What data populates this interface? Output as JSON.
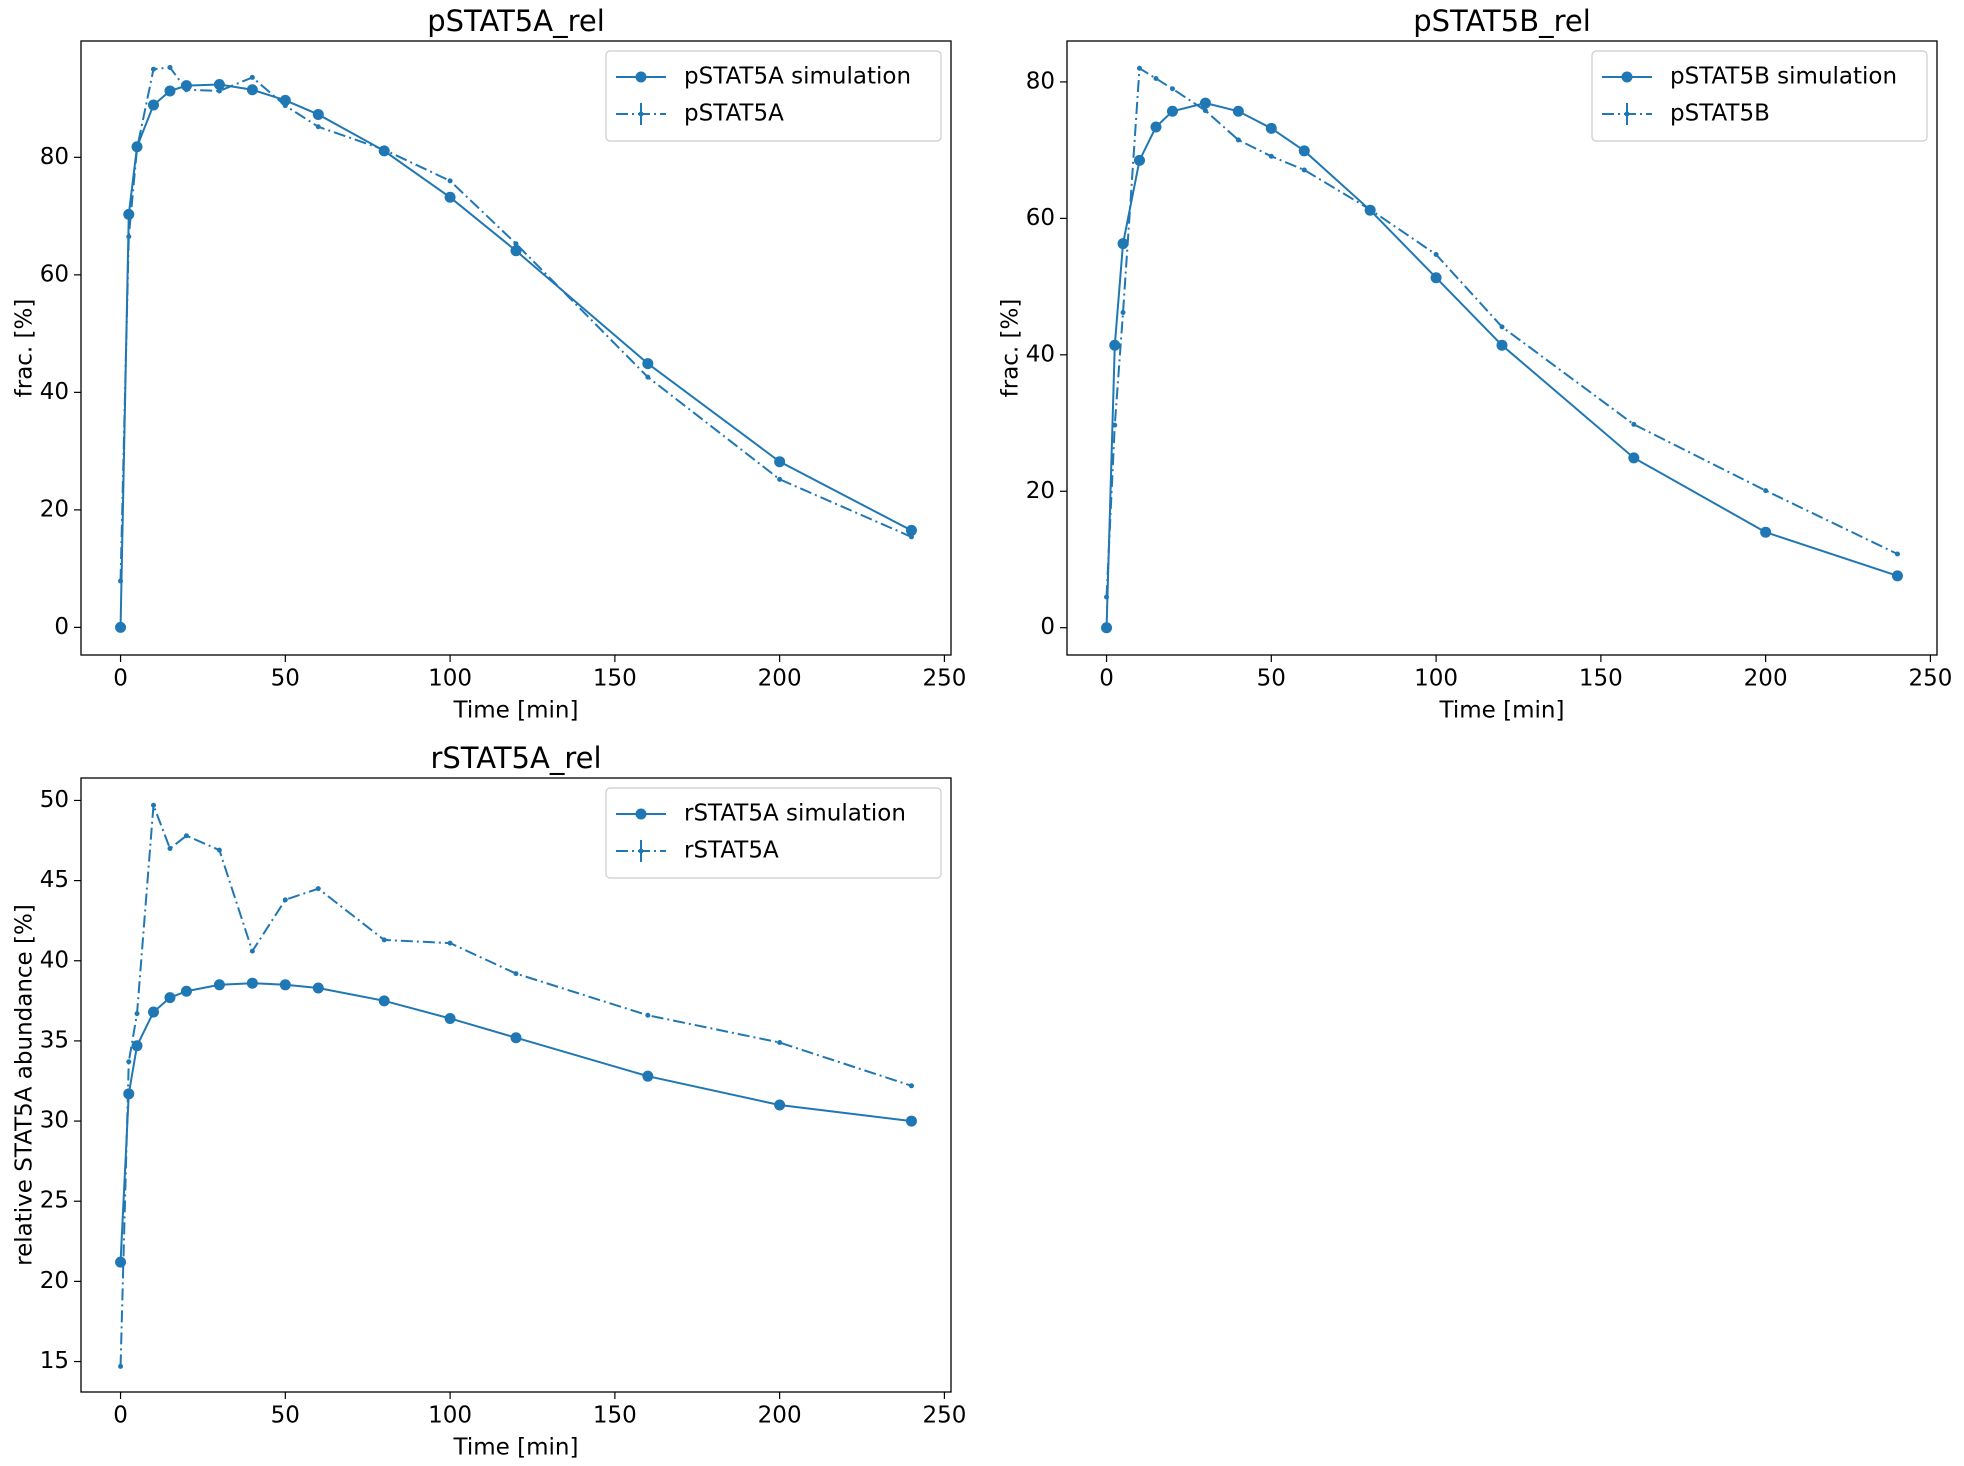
{
  "chart_data": [
    {
      "type": "line",
      "title": "pSTAT5A_rel",
      "xlabel": "Time [min]",
      "ylabel": "frac. [%]",
      "x": [
        0,
        2.5,
        5,
        10,
        15,
        20,
        30,
        40,
        50,
        60,
        80,
        100,
        120,
        160,
        200,
        240
      ],
      "series": [
        {
          "name": "pSTAT5A simulation",
          "color": "#1f77b4",
          "linestyle": "solid",
          "values": [
            0,
            70.3,
            81.8,
            88.9,
            91.3,
            92.2,
            92.4,
            91.5,
            89.7,
            87.3,
            81.1,
            73.2,
            64.1,
            44.9,
            28.2,
            16.5
          ]
        },
        {
          "name": "pSTAT5A",
          "color": "#1f77b4",
          "linestyle": "dashdot",
          "values": [
            7.9,
            66.5,
            81.5,
            95,
            95.3,
            91.5,
            91.3,
            93.6,
            88.8,
            85.2,
            81.3,
            76,
            65.3,
            42.6,
            25.2,
            15.4
          ]
        }
      ],
      "xlim": [
        -12,
        252
      ],
      "ylim": [
        -4.7,
        99.8
      ],
      "xticks": [
        0,
        50,
        100,
        150,
        200,
        250
      ],
      "yticks": [
        0,
        20,
        40,
        60,
        80
      ],
      "legend": "upper right"
    },
    {
      "type": "line",
      "title": "pSTAT5B_rel",
      "xlabel": "Time [min]",
      "ylabel": "frac. [%]",
      "x": [
        0,
        2.5,
        5,
        10,
        15,
        20,
        30,
        40,
        50,
        60,
        80,
        100,
        120,
        160,
        200,
        240
      ],
      "series": [
        {
          "name": "pSTAT5B simulation",
          "color": "#1f77b4",
          "linestyle": "solid",
          "values": [
            0,
            41.4,
            56.3,
            68.5,
            73.4,
            75.7,
            76.9,
            75.7,
            73.2,
            69.9,
            61.2,
            51.3,
            41.4,
            24.9,
            14,
            7.6
          ]
        },
        {
          "name": "pSTAT5B",
          "color": "#1f77b4",
          "linestyle": "dashdot",
          "values": [
            4.5,
            29.7,
            46.2,
            82,
            80.5,
            79,
            75.8,
            71.5,
            69.1,
            67.1,
            61.3,
            54.7,
            44.1,
            29.8,
            20.1,
            10.8
          ]
        }
      ],
      "xlim": [
        -12,
        252
      ],
      "ylim": [
        -4,
        86
      ],
      "xticks": [
        0,
        50,
        100,
        150,
        200,
        250
      ],
      "yticks": [
        0,
        20,
        40,
        60,
        80
      ],
      "legend": "upper right"
    },
    {
      "type": "line",
      "title": "rSTAT5A_rel",
      "xlabel": "Time [min]",
      "ylabel": "relative STAT5A abundance [%]",
      "x": [
        0,
        2.5,
        5,
        10,
        15,
        20,
        30,
        40,
        50,
        60,
        80,
        100,
        120,
        160,
        200,
        240
      ],
      "series": [
        {
          "name": "rSTAT5A simulation",
          "color": "#1f77b4",
          "linestyle": "solid",
          "values": [
            21.2,
            31.7,
            34.7,
            36.8,
            37.7,
            38.1,
            38.5,
            38.6,
            38.5,
            38.3,
            37.5,
            36.4,
            35.2,
            32.8,
            31,
            30
          ]
        },
        {
          "name": "rSTAT5A",
          "color": "#1f77b4",
          "linestyle": "dashdot",
          "values": [
            14.7,
            33.7,
            36.7,
            49.7,
            47,
            47.8,
            46.9,
            40.6,
            43.8,
            44.5,
            41.3,
            41.1,
            39.2,
            36.6,
            34.9,
            32.2
          ]
        }
      ],
      "xlim": [
        -12,
        252
      ],
      "ylim": [
        13.1,
        51.4
      ],
      "xticks": [
        0,
        50,
        100,
        150,
        200,
        250
      ],
      "yticks": [
        15,
        20,
        25,
        30,
        35,
        40,
        45,
        50
      ],
      "legend": "upper right"
    }
  ]
}
